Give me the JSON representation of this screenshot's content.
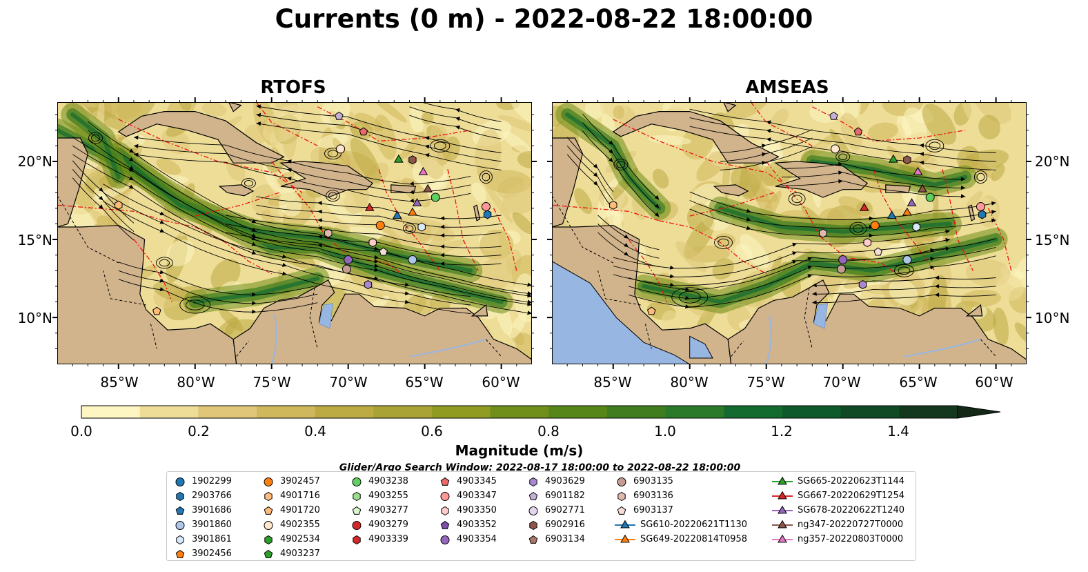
{
  "title": "Currents (0 m) - 2022-08-22 18:00:00",
  "panels": [
    {
      "title": "RTOFS"
    },
    {
      "title": "AMSEAS"
    }
  ],
  "lat_ticks": [
    "20°N",
    "15°N",
    "10°N"
  ],
  "lon_ticks": [
    "85°W",
    "80°W",
    "75°W",
    "70°W",
    "65°W",
    "60°W"
  ],
  "colorbar": {
    "label": "Magnitude (m/s)",
    "ticks": [
      "0.0",
      "0.2",
      "0.4",
      "0.6",
      "0.8",
      "1.0",
      "1.2",
      "1.4"
    ],
    "colors": [
      "#fdf6c3",
      "#eedd97",
      "#dfc678",
      "#cfb75b",
      "#bcaa43",
      "#a9a234",
      "#8f9b21",
      "#6f8e1a",
      "#568618",
      "#3f7d1f",
      "#2b7a2a",
      "#136b30",
      "#0f5a2a",
      "#0f4a25",
      "#13381e",
      "#142818"
    ]
  },
  "search_window": "Glider/Argo Search Window: 2022-08-17 18:00:00 to 2022-08-22 18:00:00",
  "legend": [
    {
      "label": "1902299",
      "marker": "circle",
      "color": "#1f77b4"
    },
    {
      "label": "2903766",
      "marker": "hexagon",
      "color": "#1f77b4"
    },
    {
      "label": "3901686",
      "marker": "pentagon",
      "color": "#1f77b4"
    },
    {
      "label": "3901860",
      "marker": "circle",
      "color": "#aec7e8"
    },
    {
      "label": "3901861",
      "marker": "hexagon",
      "color": "#d9e8fb"
    },
    {
      "label": "3902456",
      "marker": "pentagon",
      "color": "#ff7f0e"
    },
    {
      "label": "3902457",
      "marker": "circle",
      "color": "#ff7f0e"
    },
    {
      "label": "4901716",
      "marker": "hexagon",
      "color": "#ffbb78"
    },
    {
      "label": "4901720",
      "marker": "pentagon",
      "color": "#ffbb78"
    },
    {
      "label": "4902355",
      "marker": "circle",
      "color": "#ffe6cc"
    },
    {
      "label": "4902534",
      "marker": "hexagon",
      "color": "#2ca02c"
    },
    {
      "label": "4903237",
      "marker": "pentagon",
      "color": "#2ca02c"
    },
    {
      "label": "4903238",
      "marker": "circle",
      "color": "#5fcf5f"
    },
    {
      "label": "4903255",
      "marker": "hexagon",
      "color": "#98df8a"
    },
    {
      "label": "4903277",
      "marker": "pentagon",
      "color": "#d6f5cc"
    },
    {
      "label": "4903279",
      "marker": "circle",
      "color": "#d62728"
    },
    {
      "label": "4903339",
      "marker": "hexagon",
      "color": "#d62728"
    },
    {
      "label": "4903345",
      "marker": "pentagon",
      "color": "#e86a6a"
    },
    {
      "label": "4903347",
      "marker": "circle",
      "color": "#ff9896"
    },
    {
      "label": "4903350",
      "marker": "hexagon",
      "color": "#ffcccb"
    },
    {
      "label": "4903352",
      "marker": "pentagon",
      "color": "#7b4fa8"
    },
    {
      "label": "4903354",
      "marker": "circle",
      "color": "#9467bd"
    },
    {
      "label": "4903629",
      "marker": "hexagon",
      "color": "#a889cf"
    },
    {
      "label": "6901182",
      "marker": "pentagon",
      "color": "#c5b0d5"
    },
    {
      "label": "6902771",
      "marker": "circle",
      "color": "#e2d5ec"
    },
    {
      "label": "6902916",
      "marker": "hexagon",
      "color": "#8c564b"
    },
    {
      "label": "6903134",
      "marker": "pentagon",
      "color": "#a9776b"
    },
    {
      "label": "6903135",
      "marker": "circle",
      "color": "#c49c94"
    },
    {
      "label": "6903136",
      "marker": "hexagon",
      "color": "#e0b9ae"
    },
    {
      "label": "6903137",
      "marker": "pentagon",
      "color": "#f5dcd4"
    },
    {
      "label": "SG610-20220621T1130",
      "marker": "triangle-line",
      "color": "#1f77b4"
    },
    {
      "label": "SG649-20220814T0958",
      "marker": "triangle-line",
      "color": "#ff7f0e"
    },
    {
      "label": "SG665-20220623T1144",
      "marker": "triangle-line",
      "color": "#2ca02c"
    },
    {
      "label": "SG667-20220629T1254",
      "marker": "triangle-line",
      "color": "#d62728"
    },
    {
      "label": "SG678-20220622T1240",
      "marker": "triangle-line",
      "color": "#9467bd"
    },
    {
      "label": "ng347-20220727T0000",
      "marker": "triangle-line",
      "color": "#8c564b"
    },
    {
      "label": "ng357-20220803T0000",
      "marker": "triangle-line",
      "color": "#e377c2"
    }
  ],
  "platforms": [
    {
      "id": "4901716",
      "lon": -85.0,
      "lat": 17.2
    },
    {
      "id": "4901720",
      "lon": -82.5,
      "lat": 10.4
    },
    {
      "id": "4902355",
      "lon": -70.5,
      "lat": 20.8
    },
    {
      "id": "6901182",
      "lon": -70.6,
      "lat": 22.9
    },
    {
      "id": "4903345",
      "lon": -69.0,
      "lat": 21.9
    },
    {
      "id": "6903136",
      "lon": -71.3,
      "lat": 15.4
    },
    {
      "id": "4903350",
      "lon": -68.4,
      "lat": 14.8
    },
    {
      "id": "6903137",
      "lon": -67.7,
      "lat": 14.2
    },
    {
      "id": "6903135",
      "lon": -70.1,
      "lat": 13.1
    },
    {
      "id": "4903354",
      "lon": -70.0,
      "lat": 13.7
    },
    {
      "id": "4903629",
      "lon": -68.7,
      "lat": 12.1
    },
    {
      "id": "3902457",
      "lon": -67.9,
      "lat": 15.9
    },
    {
      "id": "3901860",
      "lon": -65.8,
      "lat": 13.7
    },
    {
      "id": "3901861",
      "lon": -65.2,
      "lat": 15.8
    },
    {
      "id": "4903347",
      "lon": -61.0,
      "lat": 17.1
    },
    {
      "id": "2903766",
      "lon": -60.9,
      "lat": 16.6
    },
    {
      "id": "4903238",
      "lon": -64.3,
      "lat": 17.7
    },
    {
      "id": "6902916",
      "lon": -65.8,
      "lat": 20.1
    },
    {
      "id": "SG665-20220623T1144",
      "lon": -66.7,
      "lat": 20.1
    },
    {
      "id": "SG667-20220629T1254",
      "lon": -68.6,
      "lat": 17.0
    },
    {
      "id": "SG610-20220621T1130",
      "lon": -66.8,
      "lat": 16.5
    },
    {
      "id": "SG649-20220814T0958",
      "lon": -65.8,
      "lat": 16.7
    },
    {
      "id": "SG678-20220622T1240",
      "lon": -65.5,
      "lat": 17.3
    },
    {
      "id": "ng347-20220727T0000",
      "lon": -64.8,
      "lat": 18.2
    },
    {
      "id": "ng357-20220803T0000",
      "lon": -65.1,
      "lat": 19.3
    }
  ]
}
